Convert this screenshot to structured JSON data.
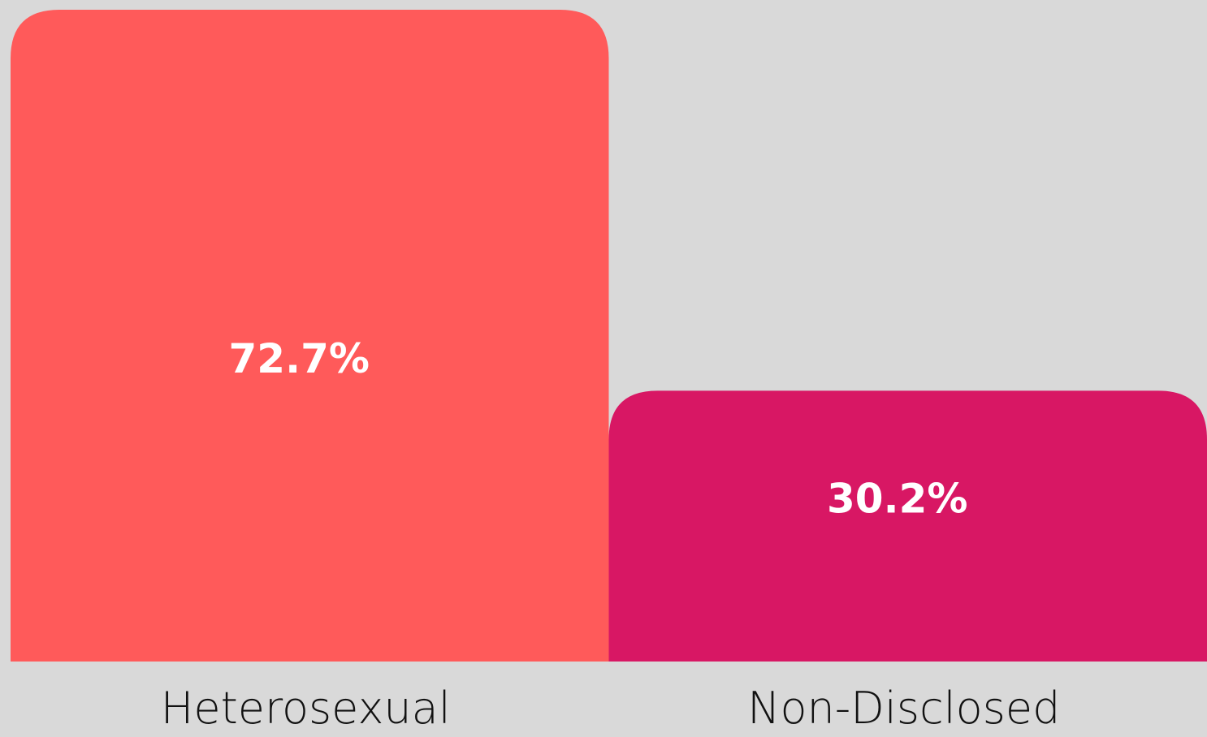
{
  "chart_data": {
    "type": "bar",
    "categories": [
      "Heterosexual",
      "Non-Disclosed"
    ],
    "values": [
      72.7,
      30.2
    ],
    "value_labels": [
      "72.7%",
      "30.2%"
    ],
    "colors": [
      "#ff5a5a",
      "#d81764"
    ]
  }
}
